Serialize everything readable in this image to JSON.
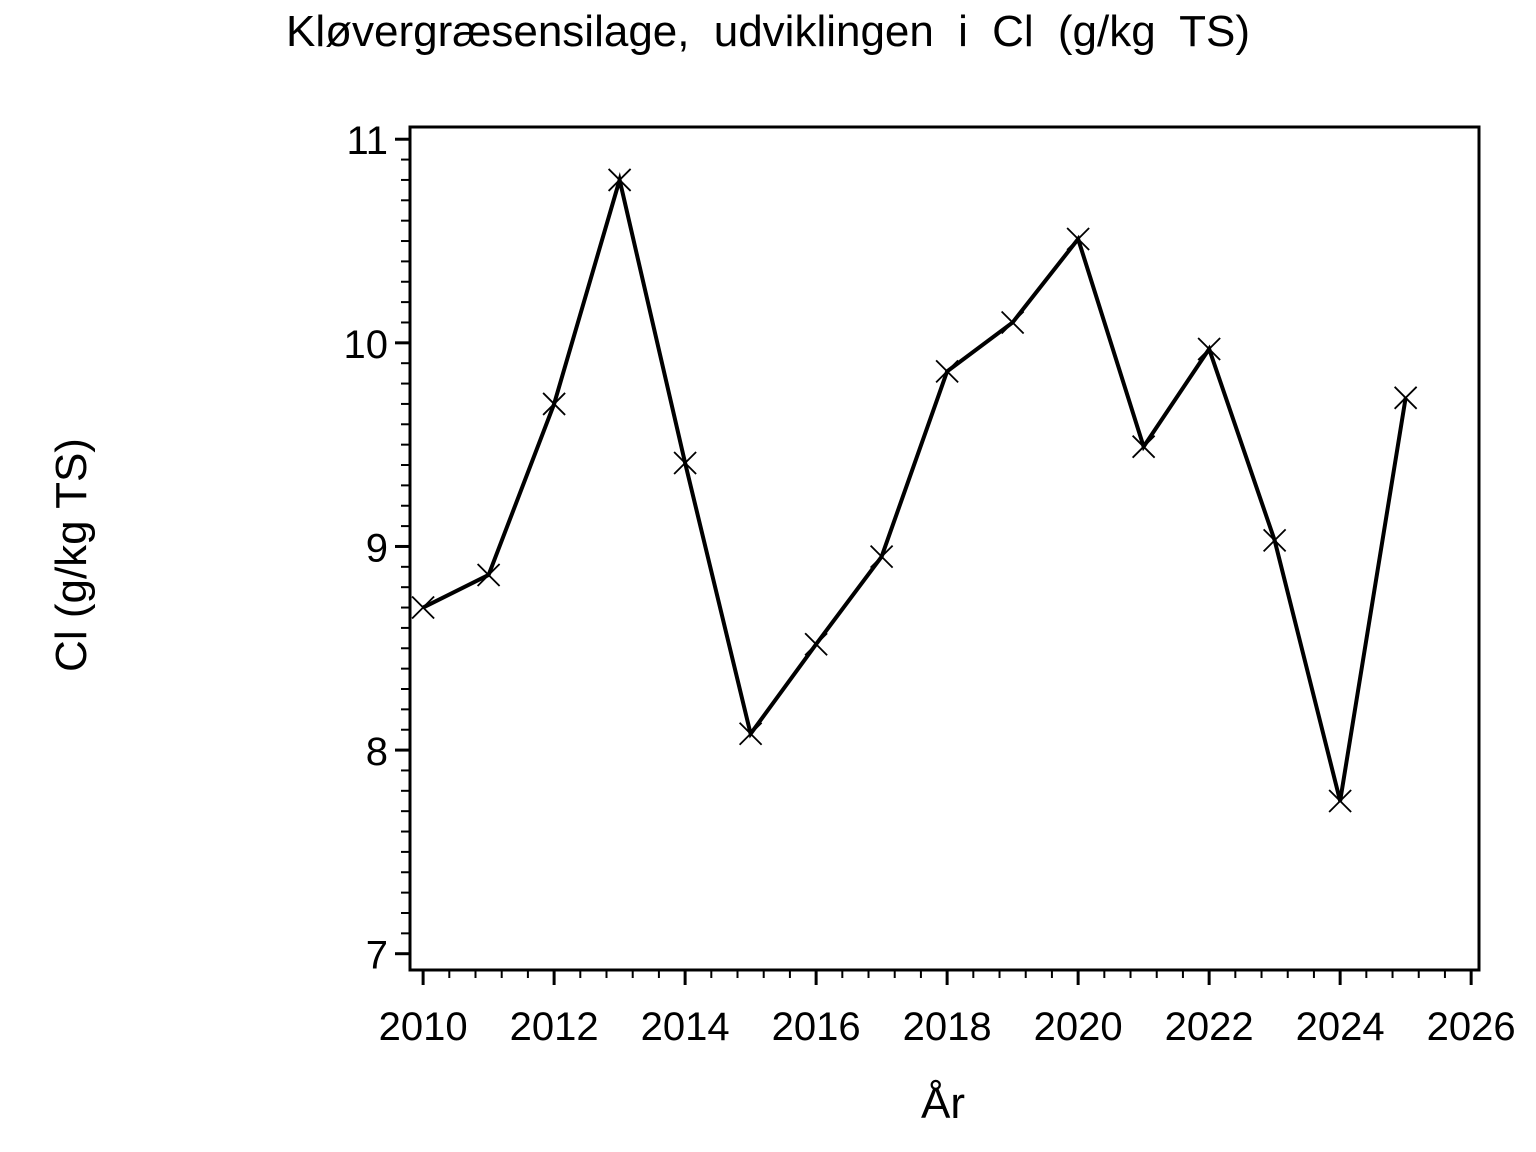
{
  "chart_data": {
    "type": "line",
    "title": "Kløvergræsensilage, udviklingen i Cl (g/kg TS)",
    "xlabel": "År",
    "ylabel": "Cl (g/kg TS)",
    "x": [
      2010,
      2011,
      2012,
      2013,
      2014,
      2015,
      2016,
      2017,
      2018,
      2019,
      2020,
      2021,
      2022,
      2023,
      2024,
      2025
    ],
    "values": [
      8.7,
      8.86,
      9.7,
      10.8,
      9.41,
      8.08,
      8.52,
      8.95,
      9.86,
      10.1,
      10.51,
      9.49,
      9.97,
      9.03,
      7.75,
      9.73
    ],
    "series_name": "Cl (g/kg TS)",
    "marker": "x",
    "line_color": "#000000",
    "background_color": "#ffffff",
    "xlim": [
      2009.8,
      2026.12
    ],
    "ylim": [
      6.92,
      11.06
    ],
    "x_ticks_major": [
      2010,
      2012,
      2014,
      2016,
      2018,
      2020,
      2022,
      2024,
      2026
    ],
    "x_tick_labels": [
      "2010",
      "2012",
      "2014",
      "2016",
      "2018",
      "2020",
      "2022",
      "2024",
      "2026"
    ],
    "x_minor_start": 2010,
    "x_minor_end": 2026,
    "x_minor_step": 0.4,
    "y_ticks_major": [
      7,
      8,
      9,
      10,
      11
    ],
    "y_tick_labels": [
      "7",
      "8",
      "9",
      "10",
      "11"
    ],
    "y_minor_start": 7,
    "y_minor_end": 11,
    "y_minor_step": 0.1,
    "grid": "off",
    "legend": "none"
  }
}
